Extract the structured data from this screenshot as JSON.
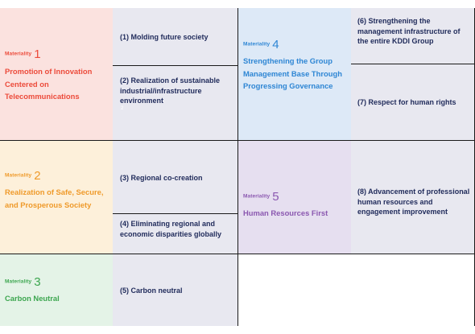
{
  "colors": {
    "m1": "#ec4b3b",
    "m1_bg": "#fbe2df",
    "m2": "#ef9a2a",
    "m2_bg": "#fdf0da",
    "m3": "#3ca64f",
    "m3_bg": "#e4f3e7",
    "m4": "#2e86d4",
    "m4_bg": "#dde9f7",
    "m5": "#8b58b0",
    "m5_bg": "#e6dff0",
    "item_bg": "#e8e8f0",
    "item_text": "#1f2a5a"
  },
  "materialities": [
    {
      "word": "Materiality",
      "number": "1",
      "title": "Promotion of Innovation Centered on Telecommunications"
    },
    {
      "word": "Materiality",
      "number": "2",
      "title": "Realization of Safe, Secure, and Prosperous Society"
    },
    {
      "word": "Materiality",
      "number": "3",
      "title": "Carbon Neutral"
    },
    {
      "word": "Materiality",
      "number": "4",
      "title": "Strengthening the Group Management Base Through Progressing Governance"
    },
    {
      "word": "Materiality",
      "number": "5",
      "title": "Human Resources First"
    }
  ],
  "items": [
    "(1) Molding future society",
    "(2) Realization of sustainable industrial/infrastructure environment",
    "(3) Regional co-creation",
    "(4) Eliminating regional and economic disparities globally",
    "(5) Carbon neutral",
    "(6) Strengthening the management infrastructure of the entire KDDI Group",
    "(7) Respect for human rights",
    "(8) Advancement of professional human resources and engagement improvement"
  ],
  "stray_mark": "2"
}
